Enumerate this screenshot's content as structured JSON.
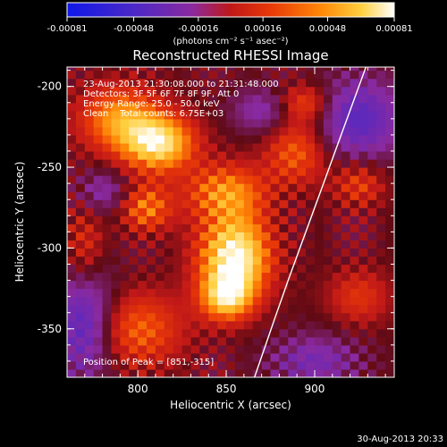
{
  "chart_data": {
    "type": "heatmap",
    "title": "Reconstructed RHESSI Image",
    "colorbar": {
      "ticks": [
        "-0.00081",
        "-0.00048",
        "-0.00016",
        "0.00016",
        "0.00048",
        "0.00081"
      ],
      "units_label": "(photons cm⁻² s⁻¹ asec⁻²)",
      "range": [
        -0.00081,
        0.00081
      ]
    },
    "xlabel": "Heliocentric X (arcsec)",
    "ylabel": "Heliocentric Y (arcsec)",
    "xlim": [
      760,
      945
    ],
    "ylim": [
      -380,
      -188
    ],
    "xticks": [
      {
        "value": 800,
        "label": "800"
      },
      {
        "value": 850,
        "label": "850"
      },
      {
        "value": 900,
        "label": "900"
      }
    ],
    "yticks": [
      {
        "value": -200,
        "label": "-200"
      },
      {
        "value": -250,
        "label": "-250"
      },
      {
        "value": -300,
        "label": "-300"
      },
      {
        "value": -350,
        "label": "-350"
      }
    ],
    "annotations": [
      "23-Aug-2013 21:30:08.000 to 21:31:48.000",
      "Detectors: 3F 5F 6F 7F 8F 9F, Att 0",
      "Energy Range: 25.0 - 50.0 keV",
      "Clean    Total counts: 6.75E+03"
    ],
    "peak_label": "Position of Peak = [851,-315]",
    "peak": [
      851,
      -315
    ],
    "limb": [
      [
        929,
        -188
      ],
      [
        925,
        -200
      ],
      [
        915,
        -230
      ],
      [
        905,
        -260
      ],
      [
        895,
        -290
      ],
      [
        885,
        -320
      ],
      [
        877,
        -345
      ],
      [
        866,
        -380
      ]
    ],
    "sources": [
      {
        "x": 855,
        "y": -305,
        "sx": 14,
        "sy": 18,
        "amp": 1.0
      },
      {
        "x": 850,
        "y": -330,
        "sx": 10,
        "sy": 10,
        "amp": 0.7
      },
      {
        "x": 812,
        "y": -235,
        "sx": 14,
        "sy": 12,
        "amp": 0.85
      },
      {
        "x": 790,
        "y": -220,
        "sx": 16,
        "sy": 14,
        "amp": 0.6
      },
      {
        "x": 850,
        "y": -265,
        "sx": 16,
        "sy": 12,
        "amp": 0.55
      },
      {
        "x": 805,
        "y": -275,
        "sx": 10,
        "sy": 10,
        "amp": 0.5
      },
      {
        "x": 800,
        "y": -350,
        "sx": 18,
        "sy": 16,
        "amp": 0.45
      },
      {
        "x": 890,
        "y": -240,
        "sx": 12,
        "sy": 14,
        "amp": 0.45
      },
      {
        "x": 895,
        "y": -210,
        "sx": 10,
        "sy": 8,
        "amp": 0.4
      },
      {
        "x": 925,
        "y": -260,
        "sx": 10,
        "sy": 10,
        "amp": 0.35
      },
      {
        "x": 925,
        "y": -330,
        "sx": 12,
        "sy": 12,
        "amp": 0.3
      },
      {
        "x": 770,
        "y": -300,
        "sx": 8,
        "sy": 20,
        "amp": 0.3
      }
    ],
    "negative_regions": [
      {
        "x": 925,
        "y": -220,
        "sx": 18,
        "sy": 18,
        "amp": 0.5
      },
      {
        "x": 770,
        "y": -345,
        "sx": 12,
        "sy": 25,
        "amp": 0.55
      },
      {
        "x": 900,
        "y": -370,
        "sx": 18,
        "sy": 12,
        "amp": 0.35
      },
      {
        "x": 870,
        "y": -215,
        "sx": 12,
        "sy": 10,
        "amp": 0.3
      },
      {
        "x": 780,
        "y": -265,
        "sx": 10,
        "sy": 10,
        "amp": 0.3
      }
    ]
  },
  "footer": {
    "date": "30-Aug-2013 20:33"
  }
}
